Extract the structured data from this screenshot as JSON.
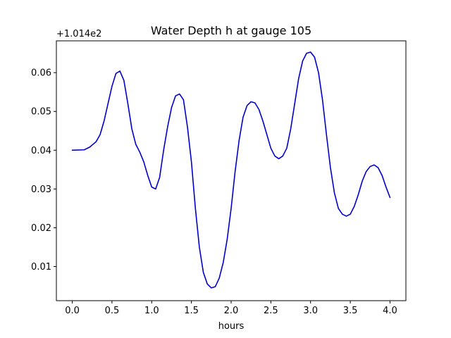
{
  "chart_data": {
    "type": "line",
    "title": "Water Depth h at gauge 105",
    "xlabel": "hours",
    "ylabel": "",
    "y_offset_label": "+1.014e2",
    "xlim": [
      -0.2,
      4.2
    ],
    "ylim": [
      0.0012,
      0.0682
    ],
    "grid": false,
    "x_ticks": [
      0.0,
      0.5,
      1.0,
      1.5,
      2.0,
      2.5,
      3.0,
      3.5,
      4.0
    ],
    "x_tick_labels": [
      "0.0",
      "0.5",
      "1.0",
      "1.5",
      "2.0",
      "2.5",
      "3.0",
      "3.5",
      "4.0"
    ],
    "y_ticks": [
      0.01,
      0.02,
      0.03,
      0.04,
      0.05,
      0.06
    ],
    "y_tick_labels": [
      "0.01",
      "0.02",
      "0.03",
      "0.04",
      "0.05",
      "0.06"
    ],
    "series": [
      {
        "color": "#0000cc",
        "points": [
          [
            0.0,
            0.04
          ],
          [
            0.15,
            0.0401
          ],
          [
            0.22,
            0.0408
          ],
          [
            0.3,
            0.0422
          ],
          [
            0.35,
            0.044
          ],
          [
            0.4,
            0.0475
          ],
          [
            0.45,
            0.052
          ],
          [
            0.5,
            0.0565
          ],
          [
            0.55,
            0.0598
          ],
          [
            0.6,
            0.0604
          ],
          [
            0.65,
            0.058
          ],
          [
            0.7,
            0.052
          ],
          [
            0.75,
            0.0455
          ],
          [
            0.8,
            0.0415
          ],
          [
            0.85,
            0.0395
          ],
          [
            0.9,
            0.037
          ],
          [
            0.95,
            0.0335
          ],
          [
            1.0,
            0.0305
          ],
          [
            1.05,
            0.03
          ],
          [
            1.1,
            0.033
          ],
          [
            1.15,
            0.04
          ],
          [
            1.2,
            0.046
          ],
          [
            1.25,
            0.051
          ],
          [
            1.3,
            0.054
          ],
          [
            1.35,
            0.0545
          ],
          [
            1.4,
            0.053
          ],
          [
            1.45,
            0.046
          ],
          [
            1.5,
            0.037
          ],
          [
            1.55,
            0.025
          ],
          [
            1.6,
            0.015
          ],
          [
            1.65,
            0.0085
          ],
          [
            1.7,
            0.0055
          ],
          [
            1.75,
            0.0045
          ],
          [
            1.8,
            0.0048
          ],
          [
            1.85,
            0.007
          ],
          [
            1.9,
            0.011
          ],
          [
            1.95,
            0.017
          ],
          [
            2.0,
            0.025
          ],
          [
            2.05,
            0.0345
          ],
          [
            2.1,
            0.0425
          ],
          [
            2.15,
            0.0485
          ],
          [
            2.2,
            0.0515
          ],
          [
            2.25,
            0.0525
          ],
          [
            2.3,
            0.0522
          ],
          [
            2.35,
            0.0505
          ],
          [
            2.4,
            0.0475
          ],
          [
            2.45,
            0.044
          ],
          [
            2.5,
            0.0405
          ],
          [
            2.55,
            0.0385
          ],
          [
            2.6,
            0.0378
          ],
          [
            2.65,
            0.0385
          ],
          [
            2.7,
            0.0405
          ],
          [
            2.75,
            0.0455
          ],
          [
            2.8,
            0.052
          ],
          [
            2.85,
            0.0585
          ],
          [
            2.9,
            0.063
          ],
          [
            2.95,
            0.065
          ],
          [
            3.0,
            0.0653
          ],
          [
            3.05,
            0.064
          ],
          [
            3.1,
            0.06
          ],
          [
            3.15,
            0.053
          ],
          [
            3.2,
            0.044
          ],
          [
            3.25,
            0.0355
          ],
          [
            3.3,
            0.029
          ],
          [
            3.35,
            0.025
          ],
          [
            3.4,
            0.0235
          ],
          [
            3.45,
            0.023
          ],
          [
            3.5,
            0.0235
          ],
          [
            3.55,
            0.0255
          ],
          [
            3.6,
            0.0285
          ],
          [
            3.65,
            0.032
          ],
          [
            3.7,
            0.0345
          ],
          [
            3.75,
            0.0358
          ],
          [
            3.8,
            0.0362
          ],
          [
            3.85,
            0.0355
          ],
          [
            3.9,
            0.0335
          ],
          [
            3.95,
            0.0305
          ],
          [
            4.0,
            0.0278
          ]
        ]
      }
    ]
  }
}
